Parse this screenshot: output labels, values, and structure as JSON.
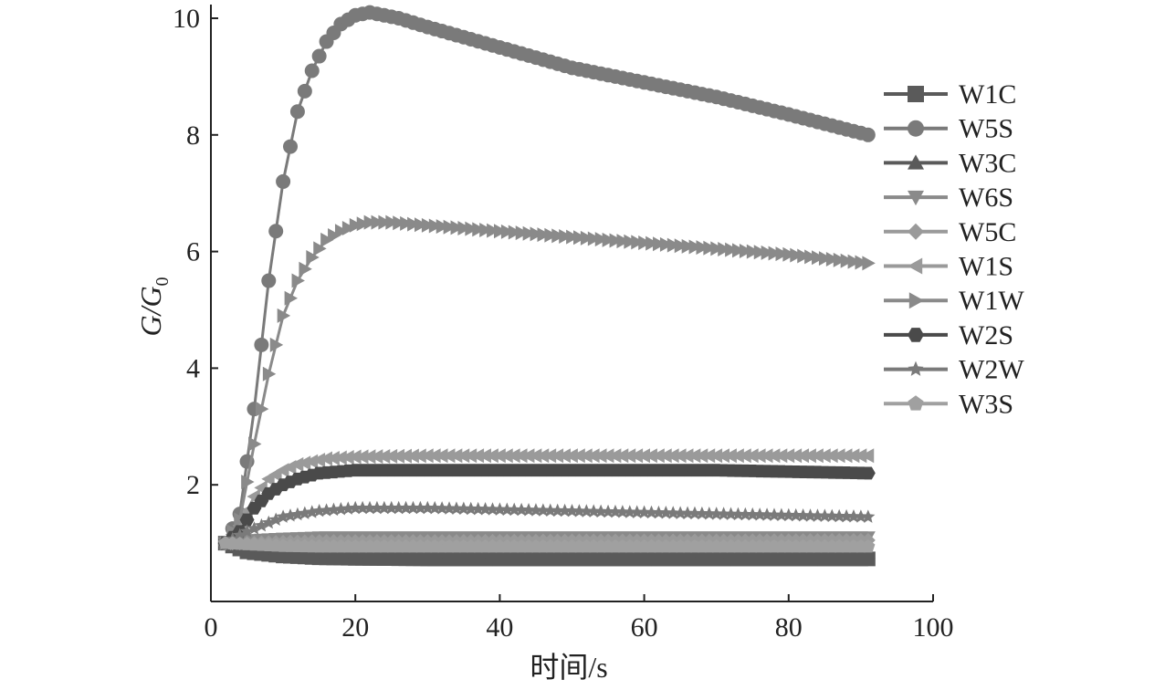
{
  "chart_data": {
    "type": "line",
    "title": "",
    "xlabel": "时间/s",
    "ylabel_main": "G/G",
    "ylabel_sub": "0",
    "xlim": [
      0,
      100
    ],
    "ylim": [
      0,
      10
    ],
    "x_ticks": [
      "0",
      "20",
      "40",
      "60",
      "80",
      "100"
    ],
    "y_ticks": [
      "2",
      "4",
      "6",
      "8",
      "10"
    ],
    "grid": false,
    "legend_position": "right",
    "series": [
      {
        "name": "W1C",
        "marker": "square",
        "color": "#5a5a5a",
        "x": [
          2,
          5,
          10,
          15,
          20,
          30,
          50,
          70,
          91
        ],
        "y": [
          1.0,
          0.85,
          0.78,
          0.75,
          0.74,
          0.73,
          0.73,
          0.73,
          0.73
        ]
      },
      {
        "name": "W5S",
        "marker": "circle",
        "color": "#7a7a7a",
        "x": [
          2,
          4,
          6,
          8,
          10,
          12,
          14,
          16,
          18,
          20,
          22,
          24,
          26,
          30,
          40,
          50,
          60,
          70,
          80,
          91
        ],
        "y": [
          1.0,
          1.5,
          3.3,
          5.5,
          7.2,
          8.4,
          9.1,
          9.6,
          9.9,
          10.05,
          10.1,
          10.05,
          10.0,
          9.85,
          9.5,
          9.15,
          8.9,
          8.65,
          8.35,
          8.0
        ]
      },
      {
        "name": "W3C",
        "marker": "triangle-up",
        "color": "#5a5a5a",
        "x": [
          2,
          5,
          10,
          15,
          20,
          30,
          50,
          70,
          91
        ],
        "y": [
          1.0,
          0.95,
          0.88,
          0.85,
          0.84,
          0.84,
          0.84,
          0.84,
          0.84
        ]
      },
      {
        "name": "W6S",
        "marker": "triangle-down",
        "color": "#8a8a8a",
        "x": [
          2,
          5,
          10,
          15,
          20,
          30,
          50,
          70,
          91
        ],
        "y": [
          1.0,
          1.05,
          1.08,
          1.1,
          1.1,
          1.1,
          1.1,
          1.1,
          1.1
        ]
      },
      {
        "name": "W5C",
        "marker": "diamond",
        "color": "#9a9a9a",
        "x": [
          2,
          5,
          10,
          15,
          20,
          30,
          50,
          70,
          91
        ],
        "y": [
          1.0,
          1.0,
          1.02,
          1.03,
          1.03,
          1.03,
          1.04,
          1.04,
          1.05
        ]
      },
      {
        "name": "W1S",
        "marker": "triangle-left",
        "color": "#9a9a9a",
        "x": [
          2,
          4,
          6,
          8,
          10,
          12,
          14,
          16,
          20,
          30,
          50,
          70,
          91
        ],
        "y": [
          1.0,
          1.3,
          1.8,
          2.1,
          2.25,
          2.35,
          2.4,
          2.45,
          2.48,
          2.5,
          2.5,
          2.5,
          2.5
        ]
      },
      {
        "name": "W1W",
        "marker": "triangle-right",
        "color": "#8a8a8a",
        "x": [
          2,
          4,
          6,
          8,
          10,
          12,
          14,
          16,
          18,
          20,
          22,
          25,
          30,
          40,
          50,
          60,
          70,
          80,
          91
        ],
        "y": [
          1.0,
          1.4,
          2.7,
          3.9,
          4.9,
          5.5,
          5.9,
          6.2,
          6.35,
          6.45,
          6.5,
          6.5,
          6.45,
          6.35,
          6.25,
          6.15,
          6.05,
          5.95,
          5.8
        ]
      },
      {
        "name": "W2S",
        "marker": "hexagon",
        "color": "#4a4a4a",
        "x": [
          2,
          4,
          6,
          8,
          10,
          12,
          15,
          20,
          30,
          50,
          70,
          91
        ],
        "y": [
          1.0,
          1.2,
          1.6,
          1.85,
          2.0,
          2.1,
          2.2,
          2.25,
          2.25,
          2.25,
          2.25,
          2.2
        ]
      },
      {
        "name": "W2W",
        "marker": "star",
        "color": "#7a7a7a",
        "x": [
          2,
          5,
          10,
          15,
          20,
          30,
          50,
          70,
          91
        ],
        "y": [
          1.0,
          1.2,
          1.45,
          1.55,
          1.6,
          1.6,
          1.55,
          1.5,
          1.45
        ]
      },
      {
        "name": "W3S",
        "marker": "pentagon",
        "color": "#a0a0a0",
        "x": [
          2,
          5,
          10,
          15,
          20,
          30,
          50,
          70,
          91
        ],
        "y": [
          1.0,
          0.98,
          0.95,
          0.94,
          0.94,
          0.94,
          0.94,
          0.94,
          0.94
        ]
      }
    ]
  }
}
